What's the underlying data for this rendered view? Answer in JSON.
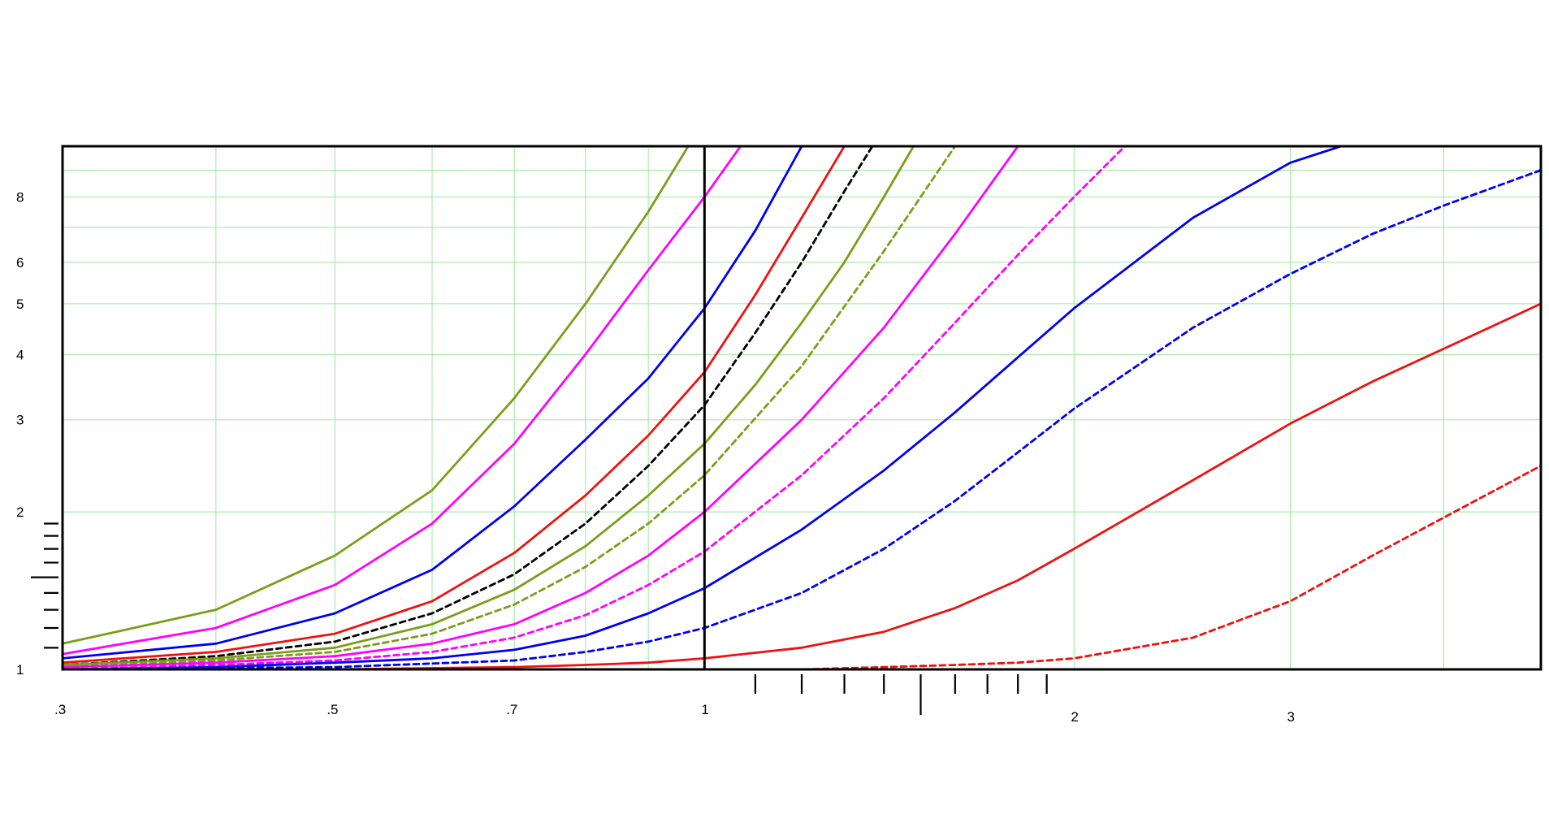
{
  "chart_data": {
    "type": "line",
    "title": "",
    "xlabel": "",
    "ylabel": "",
    "x_scale": "log",
    "y_scale": "log",
    "xlim": [
      0.3,
      4.8
    ],
    "ylim": [
      1,
      10
    ],
    "grid": true,
    "grid_color": "#9be89b",
    "x_ticks": [
      {
        "value": 0.3,
        "label": ".3"
      },
      {
        "value": 0.5,
        "label": ".5"
      },
      {
        "value": 0.7,
        "label": ".7"
      },
      {
        "value": 1,
        "label": "1"
      },
      {
        "value": 2,
        "label": "2"
      },
      {
        "value": 3,
        "label": "3"
      }
    ],
    "x_grid": [
      0.4,
      0.5,
      0.6,
      0.7,
      0.8,
      0.9,
      2,
      3,
      4
    ],
    "x_minor_ticks": [
      1.1,
      1.2,
      1.3,
      1.4,
      1.5,
      1.6,
      1.7,
      1.8,
      1.9
    ],
    "y_ticks": [
      {
        "value": 1,
        "label": "1"
      },
      {
        "value": 2,
        "label": "2"
      },
      {
        "value": 3,
        "label": "3"
      },
      {
        "value": 4,
        "label": "4"
      },
      {
        "value": 5,
        "label": "5"
      },
      {
        "value": 6,
        "label": "6"
      },
      {
        "value": 8,
        "label": "8"
      }
    ],
    "y_grid": [
      2,
      3,
      4,
      5,
      6,
      7,
      8,
      9
    ],
    "y_minor_ticks": [
      1.1,
      1.2,
      1.3,
      1.4,
      1.5,
      1.6,
      1.7,
      1.8,
      1.9
    ],
    "reference_line": {
      "x": 1,
      "color": "#000000"
    },
    "series": [
      {
        "color": "#7a9e1a",
        "style": "solid",
        "x": [
          0.3,
          0.4,
          0.5,
          0.6,
          0.7,
          0.8,
          0.9,
          0.97
        ],
        "y": [
          1.12,
          1.3,
          1.65,
          2.2,
          3.3,
          5.0,
          7.5,
          10
        ]
      },
      {
        "color": "#ff00ff",
        "style": "solid",
        "x": [
          0.3,
          0.4,
          0.5,
          0.6,
          0.7,
          0.8,
          0.9,
          1.0,
          1.07
        ],
        "y": [
          1.07,
          1.2,
          1.45,
          1.9,
          2.7,
          4.0,
          5.8,
          8.0,
          10
        ]
      },
      {
        "color": "#0000ee",
        "style": "solid",
        "x": [
          0.3,
          0.4,
          0.5,
          0.6,
          0.7,
          0.8,
          0.9,
          1.0,
          1.1,
          1.2
        ],
        "y": [
          1.05,
          1.12,
          1.28,
          1.55,
          2.05,
          2.75,
          3.6,
          4.9,
          6.9,
          10
        ]
      },
      {
        "color": "#ee1111",
        "style": "solid",
        "x": [
          0.3,
          0.4,
          0.5,
          0.6,
          0.7,
          0.8,
          0.9,
          1.0,
          1.1,
          1.2,
          1.3
        ],
        "y": [
          1.03,
          1.08,
          1.17,
          1.35,
          1.67,
          2.15,
          2.8,
          3.7,
          5.2,
          7.3,
          10
        ]
      },
      {
        "color": "#000000",
        "style": "dashed",
        "x": [
          0.3,
          0.4,
          0.5,
          0.6,
          0.7,
          0.8,
          0.9,
          1.0,
          1.1,
          1.2,
          1.3,
          1.37
        ],
        "y": [
          1.02,
          1.06,
          1.13,
          1.28,
          1.52,
          1.9,
          2.45,
          3.2,
          4.4,
          6.0,
          8.2,
          10
        ]
      },
      {
        "color": "#7a9e1a",
        "style": "solid",
        "x": [
          0.3,
          0.4,
          0.5,
          0.6,
          0.7,
          0.8,
          0.9,
          1.0,
          1.1,
          1.2,
          1.3,
          1.4,
          1.48
        ],
        "y": [
          1.02,
          1.05,
          1.1,
          1.22,
          1.42,
          1.72,
          2.15,
          2.7,
          3.5,
          4.6,
          6.0,
          8.0,
          10
        ]
      },
      {
        "color": "#7a9e1a",
        "style": "dashed",
        "x": [
          0.3,
          0.4,
          0.5,
          0.6,
          0.7,
          0.8,
          0.9,
          1.0,
          1.2,
          1.4,
          1.6
        ],
        "y": [
          1.01,
          1.04,
          1.08,
          1.17,
          1.33,
          1.57,
          1.9,
          2.35,
          3.8,
          6.3,
          10
        ]
      },
      {
        "color": "#ff00ff",
        "style": "solid",
        "x": [
          0.3,
          0.4,
          0.5,
          0.6,
          0.7,
          0.8,
          0.9,
          1.0,
          1.2,
          1.4,
          1.6,
          1.8
        ],
        "y": [
          1.01,
          1.03,
          1.06,
          1.12,
          1.22,
          1.4,
          1.65,
          2.0,
          3.0,
          4.5,
          6.8,
          10
        ]
      },
      {
        "color": "#ff00ff",
        "style": "dashed",
        "x": [
          0.3,
          0.4,
          0.5,
          0.6,
          0.7,
          0.8,
          0.9,
          1.0,
          1.2,
          1.4,
          1.6,
          1.8,
          2.0,
          2.2
        ],
        "y": [
          1.0,
          1.02,
          1.04,
          1.08,
          1.15,
          1.27,
          1.45,
          1.68,
          2.35,
          3.3,
          4.6,
          6.2,
          8.0,
          10
        ]
      },
      {
        "color": "#0000ee",
        "style": "solid",
        "x": [
          0.3,
          0.4,
          0.5,
          0.6,
          0.7,
          0.8,
          0.9,
          1.0,
          1.2,
          1.4,
          1.6,
          1.8,
          2.0,
          2.5,
          3.0,
          3.3
        ],
        "y": [
          1.0,
          1.01,
          1.03,
          1.05,
          1.09,
          1.16,
          1.28,
          1.43,
          1.85,
          2.4,
          3.1,
          3.95,
          4.9,
          7.3,
          9.3,
          10
        ]
      },
      {
        "color": "#0000ee",
        "style": "dashed",
        "x": [
          0.3,
          0.5,
          0.7,
          0.8,
          0.9,
          1.0,
          1.2,
          1.4,
          1.6,
          1.8,
          2.0,
          2.5,
          3.0,
          3.5,
          4.0,
          4.8
        ],
        "y": [
          1.0,
          1.01,
          1.04,
          1.08,
          1.13,
          1.2,
          1.4,
          1.7,
          2.1,
          2.6,
          3.15,
          4.5,
          5.7,
          6.8,
          7.7,
          9.0
        ]
      },
      {
        "color": "#ee1111",
        "style": "solid",
        "x": [
          0.3,
          0.5,
          0.7,
          0.8,
          0.9,
          1.0,
          1.2,
          1.4,
          1.6,
          1.8,
          2.0,
          2.5,
          3.0,
          3.5,
          4.0,
          4.8
        ],
        "y": [
          1.0,
          1.0,
          1.01,
          1.02,
          1.03,
          1.05,
          1.1,
          1.18,
          1.31,
          1.48,
          1.7,
          2.3,
          2.95,
          3.55,
          4.1,
          5.0
        ]
      },
      {
        "color": "#ee1111",
        "style": "dashed",
        "x": [
          0.3,
          0.7,
          1.0,
          1.2,
          1.4,
          1.6,
          1.8,
          2.0,
          2.5,
          3.0,
          3.5,
          4.0,
          4.8
        ],
        "y": [
          1.0,
          1.0,
          1.0,
          1.0,
          1.01,
          1.02,
          1.03,
          1.05,
          1.15,
          1.35,
          1.65,
          1.95,
          2.45
        ]
      }
    ]
  }
}
